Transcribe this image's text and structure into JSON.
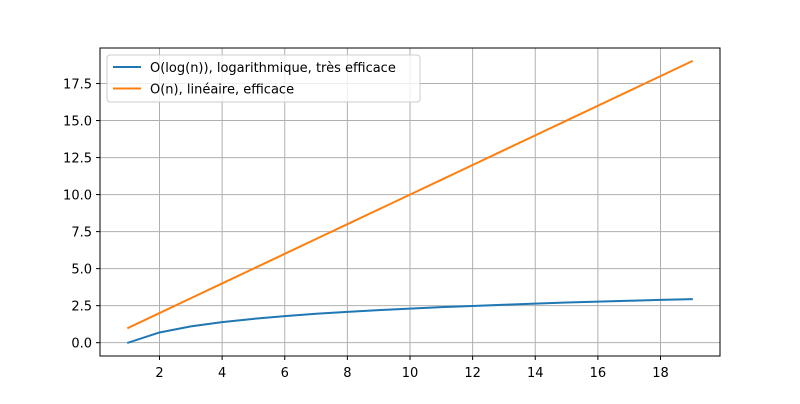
{
  "chart_data": {
    "type": "line",
    "title": "",
    "xlabel": "",
    "ylabel": "",
    "xlim": [
      0.1,
      19.9
    ],
    "ylim": [
      -0.9,
      19.9
    ],
    "xticks": [
      2,
      4,
      6,
      8,
      10,
      12,
      14,
      16,
      18
    ],
    "yticks": [
      0.0,
      2.5,
      5.0,
      7.5,
      10.0,
      12.5,
      15.0,
      17.5
    ],
    "ytick_labels": [
      "0.0",
      "2.5",
      "5.0",
      "7.5",
      "10.0",
      "12.5",
      "15.0",
      "17.5"
    ],
    "grid": true,
    "legend_position": "top-left",
    "x": [
      1,
      2,
      3,
      4,
      5,
      6,
      7,
      8,
      9,
      10,
      11,
      12,
      13,
      14,
      15,
      16,
      17,
      18,
      19
    ],
    "series": [
      {
        "name": "O(log(n)), logarithmique, très efficace",
        "color": "#1f77b4",
        "values": [
          0.0,
          0.69,
          1.1,
          1.39,
          1.61,
          1.79,
          1.95,
          2.08,
          2.2,
          2.3,
          2.4,
          2.48,
          2.56,
          2.64,
          2.71,
          2.77,
          2.83,
          2.89,
          2.94
        ]
      },
      {
        "name": "O(n), linéaire, efficace",
        "color": "#ff7f0e",
        "values": [
          1,
          2,
          3,
          4,
          5,
          6,
          7,
          8,
          9,
          10,
          11,
          12,
          13,
          14,
          15,
          16,
          17,
          18,
          19
        ]
      }
    ]
  }
}
